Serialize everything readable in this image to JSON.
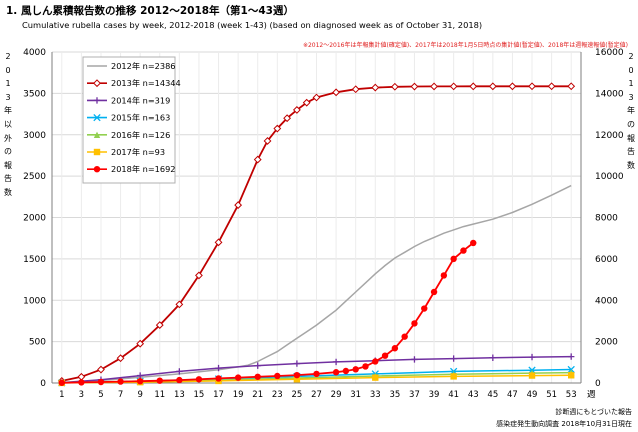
{
  "page": {
    "title": "1. 風しん累積報告数の推移 2012〜2018年（第1〜43週）",
    "subtitle": "Cumulative rubella cases by week, 2012-2018 (week 1-43) (based on diagnosed week as of October 31, 2018)",
    "note": "※2012〜2016年は年報集計値(確定値)、2017年は2018年1月5日時点の集計値(暫定値)、2018年は週報速報値(暫定値)",
    "left_axis_label": [
      "2",
      "0",
      "1",
      "3",
      "年",
      "以",
      "外",
      "の",
      "報",
      "告",
      "数"
    ],
    "right_axis_label": [
      "2",
      "0",
      "1",
      "3",
      "年",
      "の",
      "報",
      "告",
      "数"
    ],
    "source_line1": "診断週にもとづいた報告",
    "source_line2": "感染症発生動向調査 2018年10月31日現在"
  },
  "chart_data": {
    "type": "line",
    "title": "風しん累積報告数の推移 2012〜2018年（第1〜43週）",
    "xlabel": "週",
    "left_axis": {
      "ylim": [
        0,
        4000
      ],
      "ticks": [
        0,
        500,
        1000,
        1500,
        2000,
        2500,
        3000,
        3500,
        4000
      ]
    },
    "right_axis": {
      "ylim": [
        0,
        16000
      ],
      "ticks": [
        0,
        2000,
        4000,
        6000,
        8000,
        10000,
        12000,
        14000,
        16000
      ]
    },
    "x_ticks": [
      1,
      3,
      5,
      7,
      9,
      11,
      13,
      15,
      17,
      19,
      21,
      23,
      25,
      27,
      29,
      31,
      33,
      35,
      37,
      39,
      41,
      43,
      45,
      47,
      49,
      51,
      53
    ],
    "x_unit": "週",
    "grid": true,
    "legend_position": "top-left",
    "series": [
      {
        "name": "2012年 n=2386",
        "color": "#a6a6a6",
        "marker": "none",
        "axis": "left",
        "x": [
          1,
          5,
          9,
          13,
          17,
          19,
          20,
          21,
          22,
          23,
          24,
          25,
          26,
          27,
          28,
          29,
          30,
          31,
          32,
          33,
          34,
          35,
          36,
          37,
          38,
          39,
          40,
          41,
          42,
          43,
          45,
          47,
          49,
          51,
          53
        ],
        "y": [
          5,
          30,
          70,
          110,
          160,
          195,
          215,
          260,
          320,
          380,
          460,
          540,
          620,
          700,
          790,
          880,
          990,
          1100,
          1210,
          1320,
          1420,
          1510,
          1580,
          1650,
          1710,
          1760,
          1810,
          1850,
          1890,
          1920,
          1980,
          2060,
          2160,
          2270,
          2386
        ]
      },
      {
        "name": "2013年 n=14344",
        "color": "#c00000",
        "marker": "diamond",
        "axis": "right",
        "x": [
          1,
          3,
          5,
          7,
          9,
          11,
          13,
          15,
          17,
          19,
          21,
          22,
          23,
          24,
          25,
          26,
          27,
          29,
          31,
          33,
          35,
          37,
          39,
          41,
          43,
          45,
          47,
          49,
          51,
          53
        ],
        "y": [
          100,
          300,
          650,
          1200,
          1900,
          2800,
          3800,
          5200,
          6800,
          8600,
          10800,
          11700,
          12300,
          12800,
          13200,
          13550,
          13800,
          14050,
          14200,
          14280,
          14320,
          14330,
          14335,
          14338,
          14340,
          14341,
          14342,
          14343,
          14344,
          14344
        ]
      },
      {
        "name": "2014年 n=319",
        "color": "#7030a0",
        "marker": "plus",
        "axis": "left",
        "x": [
          1,
          5,
          9,
          13,
          17,
          21,
          25,
          29,
          33,
          37,
          41,
          45,
          49,
          53
        ],
        "y": [
          5,
          40,
          90,
          140,
          180,
          210,
          235,
          255,
          270,
          285,
          295,
          305,
          313,
          319
        ]
      },
      {
        "name": "2015年 n=163",
        "color": "#00b0f0",
        "marker": "x",
        "axis": "left",
        "x": [
          1,
          9,
          17,
          25,
          33,
          41,
          49,
          53
        ],
        "y": [
          2,
          20,
          50,
          80,
          110,
          140,
          155,
          163
        ]
      },
      {
        "name": "2016年 n=126",
        "color": "#92d050",
        "marker": "triangle",
        "axis": "left",
        "x": [
          1,
          9,
          17,
          25,
          33,
          41,
          49,
          53
        ],
        "y": [
          2,
          15,
          35,
          60,
          85,
          105,
          120,
          126
        ]
      },
      {
        "name": "2017年 n=93",
        "color": "#ffc000",
        "marker": "square",
        "axis": "left",
        "x": [
          1,
          9,
          17,
          25,
          33,
          41,
          49,
          53
        ],
        "y": [
          1,
          10,
          25,
          45,
          65,
          80,
          90,
          93
        ]
      },
      {
        "name": "2018年 n=1692",
        "color": "#ff0000",
        "marker": "circle",
        "axis": "left",
        "x": [
          1,
          3,
          5,
          7,
          9,
          11,
          13,
          15,
          17,
          19,
          21,
          23,
          25,
          27,
          29,
          30,
          31,
          32,
          33,
          34,
          35,
          36,
          37,
          38,
          39,
          40,
          41,
          42,
          43
        ],
        "y": [
          3,
          7,
          12,
          17,
          22,
          28,
          35,
          45,
          55,
          65,
          75,
          85,
          95,
          110,
          130,
          145,
          165,
          200,
          260,
          330,
          420,
          560,
          720,
          900,
          1100,
          1300,
          1500,
          1600,
          1692
        ]
      }
    ]
  }
}
